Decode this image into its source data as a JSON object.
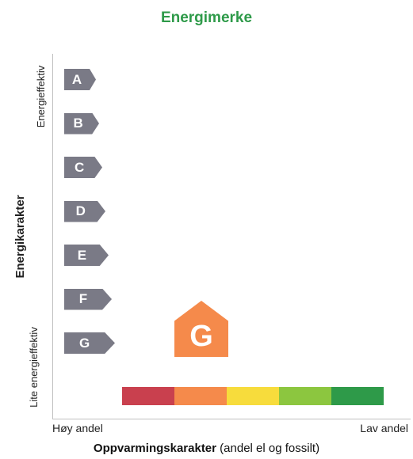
{
  "title": "Energimerke",
  "y_axis": {
    "title": "Energikarakter",
    "top_label": "Energieffektiv",
    "bottom_label": "Lite energieffektiv"
  },
  "x_axis": {
    "title_bold": "Oppvarmingskarakter",
    "title_rest": "(andel el og fossilt)",
    "left_label": "Høy andel",
    "right_label": "Lav andel"
  },
  "energy_classes": [
    "A",
    "B",
    "C",
    "D",
    "E",
    "F",
    "G"
  ],
  "current_rating": {
    "energy_class": "G",
    "heating_index": 2,
    "color": "#f58a4b"
  },
  "heating_scale_colors": [
    "#c9404e",
    "#f58a4b",
    "#f7dc3c",
    "#8cc63f",
    "#2e9a49"
  ],
  "colors": {
    "title": "#2e9a49",
    "class_arrow": "#7a7a86",
    "axis_text": "#222222"
  }
}
